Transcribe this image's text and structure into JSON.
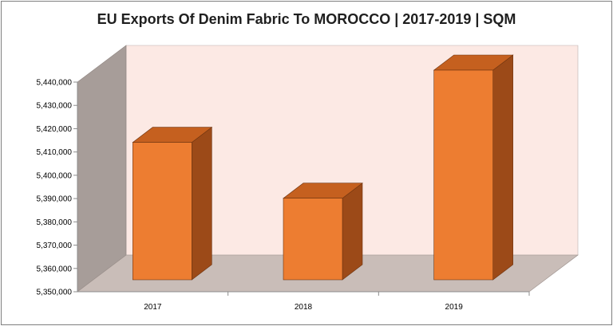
{
  "chart_data": {
    "type": "bar",
    "title": "EU Exports Of Denim Fabric To MOROCCO | 2017-2019 | SQM",
    "xlabel": "",
    "ylabel": "",
    "categories": [
      "2017",
      "2018",
      "2019"
    ],
    "values": [
      5409000,
      5385000,
      5440000
    ],
    "ylim": [
      5350000,
      5440000
    ],
    "yticks": [
      "5,350,000",
      "5,360,000",
      "5,370,000",
      "5,380,000",
      "5,390,000",
      "5,400,000",
      "5,410,000",
      "5,420,000",
      "5,430,000",
      "5,440,000"
    ],
    "grid": false,
    "legend": "none",
    "style": "3d",
    "colors": {
      "bar_front": "#ED7D31",
      "bar_top": "#C5601F",
      "bar_side": "#9C4A18",
      "back_wall": "#FCE9E4",
      "side_wall": "#A79D99",
      "floor": "#C9BDB8"
    }
  }
}
